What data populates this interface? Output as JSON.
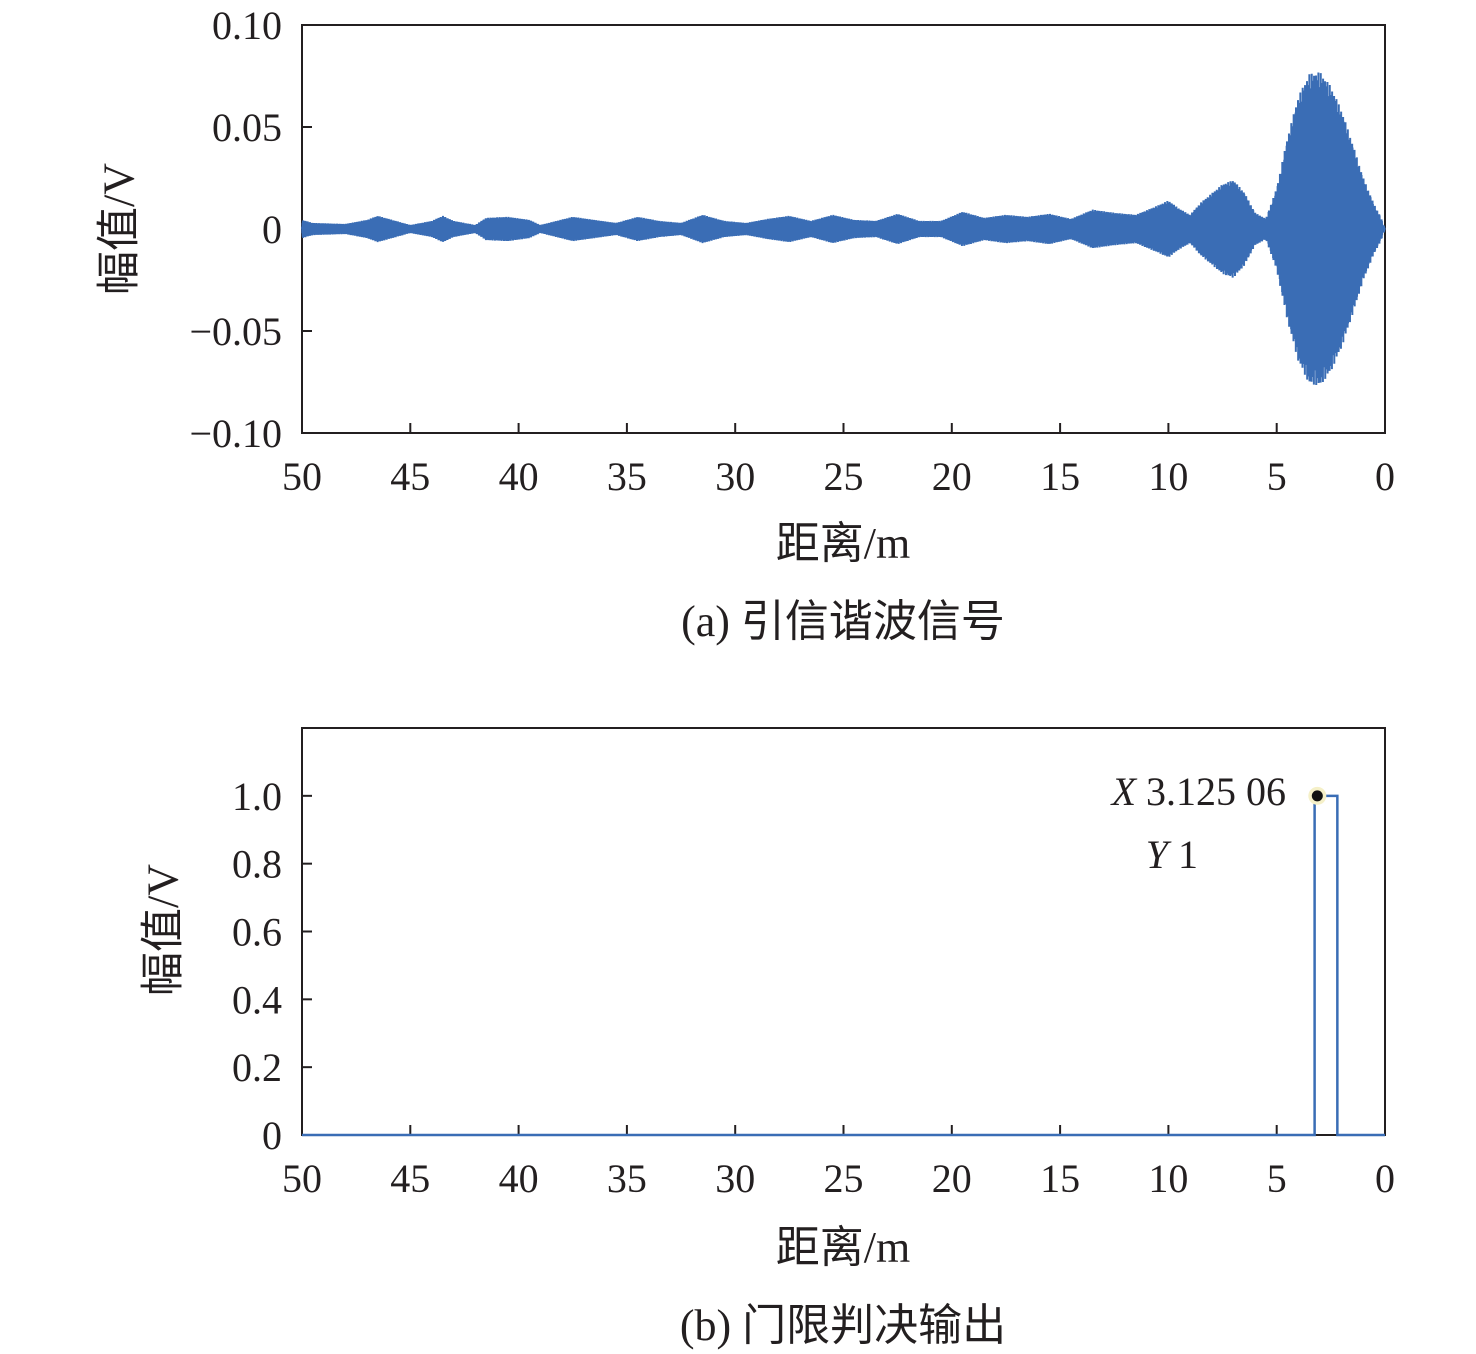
{
  "chart_data": [
    {
      "type": "line",
      "caption": "(a) 引信谐波信号",
      "xlabel": "距离/m",
      "ylabel": "幅值/V",
      "xlim": [
        50,
        0
      ],
      "ylim": [
        -0.1,
        0.1
      ],
      "x_ticks": [
        50,
        45,
        40,
        35,
        30,
        25,
        20,
        15,
        10,
        5,
        0
      ],
      "x_tick_labels": [
        "50",
        "45",
        "40",
        "35",
        "30",
        "25",
        "20",
        "15",
        "10",
        "5",
        "0"
      ],
      "y_ticks": [
        0.1,
        0.05,
        0,
        -0.05,
        -0.1
      ],
      "y_tick_labels": [
        "0.10",
        "0.05",
        "0",
        "−0.05",
        "−0.10"
      ],
      "color": "#3a6db5",
      "envelope": {
        "x": [
          50,
          49.5,
          48,
          47,
          46.5,
          46,
          45,
          44,
          43.5,
          43,
          42,
          41.5,
          40.5,
          39.5,
          39,
          37.5,
          36.5,
          35.5,
          34.5,
          33.5,
          32.5,
          31.5,
          30.5,
          29.5,
          28.5,
          27.5,
          26.5,
          25.5,
          24.5,
          23.5,
          22.5,
          21.5,
          20.5,
          19.5,
          18.5,
          17.5,
          16.5,
          15.5,
          14.5,
          13.5,
          12.5,
          11.5,
          10.5,
          10,
          9.5,
          9,
          8.5,
          7.5,
          7,
          6.5,
          6,
          5.5,
          5,
          4.5,
          4,
          3.5,
          3,
          2.5,
          2,
          1.5,
          1,
          0.5,
          0.2,
          0
        ],
        "amplitude": [
          0.0045,
          0.003,
          0.0025,
          0.0045,
          0.0065,
          0.005,
          0.002,
          0.004,
          0.0065,
          0.004,
          0.002,
          0.0055,
          0.006,
          0.0045,
          0.002,
          0.006,
          0.0045,
          0.003,
          0.006,
          0.004,
          0.003,
          0.007,
          0.004,
          0.003,
          0.005,
          0.0065,
          0.004,
          0.007,
          0.0045,
          0.004,
          0.0075,
          0.004,
          0.004,
          0.0085,
          0.0055,
          0.007,
          0.006,
          0.0075,
          0.005,
          0.0095,
          0.008,
          0.007,
          0.0115,
          0.014,
          0.01,
          0.007,
          0.013,
          0.022,
          0.024,
          0.018,
          0.008,
          0.005,
          0.02,
          0.045,
          0.065,
          0.076,
          0.077,
          0.07,
          0.058,
          0.042,
          0.025,
          0.012,
          0.006,
          0.0
        ]
      }
    },
    {
      "type": "line",
      "caption": "(b) 门限判决输出",
      "xlabel": "距离/m",
      "ylabel": "幅值/V",
      "xlim": [
        50,
        0
      ],
      "ylim": [
        0,
        1.2
      ],
      "x_ticks": [
        50,
        45,
        40,
        35,
        30,
        25,
        20,
        15,
        10,
        5,
        0
      ],
      "x_tick_labels": [
        "50",
        "45",
        "40",
        "35",
        "30",
        "25",
        "20",
        "15",
        "10",
        "5",
        "0"
      ],
      "y_ticks": [
        0,
        0.2,
        0.4,
        0.6,
        0.8,
        1.0
      ],
      "y_tick_labels": [
        "0",
        "0.2",
        "0.4",
        "0.6",
        "0.8",
        "1.0"
      ],
      "color": "#3a6db5",
      "x": [
        50,
        3.25,
        3.25,
        3.125,
        3.125,
        2.2,
        2.2,
        0
      ],
      "y": [
        0,
        0,
        1,
        1,
        1,
        1,
        0,
        0
      ],
      "datatip": {
        "x": 3.12506,
        "y": 1,
        "x_label": "X",
        "x_value": "3.125 06",
        "y_label": "Y",
        "y_value": "1"
      }
    }
  ]
}
